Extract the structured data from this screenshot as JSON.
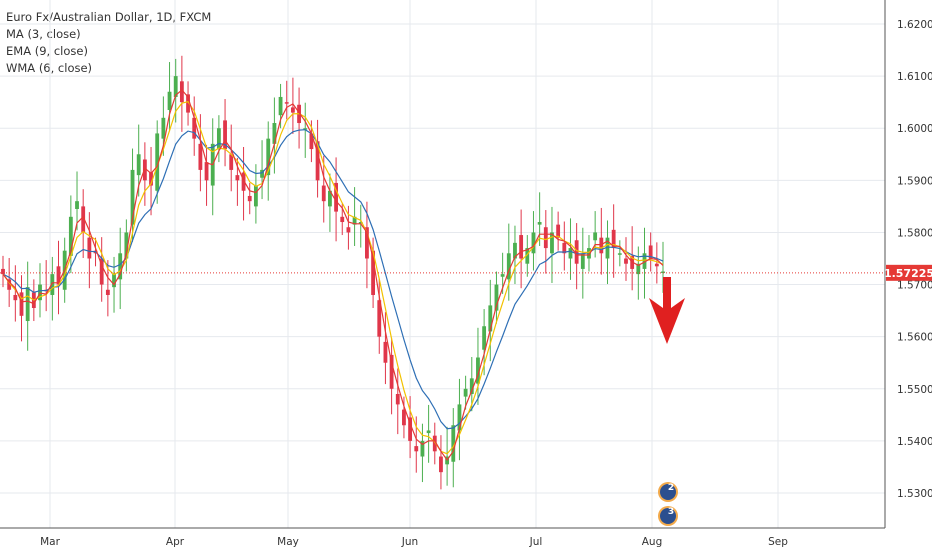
{
  "legend": {
    "title": "Euro Fx/Australian Dollar, 1D, FXCM",
    "indicators": [
      "MA (3, close)",
      "EMA (9, close)",
      "WMA (6, close)"
    ]
  },
  "colors": {
    "up": "#4caf50",
    "down": "#e0364a",
    "ma": "#e53935",
    "ema": "#2e6fb5",
    "wma": "#f2c200",
    "grid": "#e6e9ee",
    "axis": "#333333",
    "price_line": "#e53935"
  },
  "event_badges": [
    "2",
    "3"
  ],
  "chart_data": {
    "type": "candlestick",
    "symbol": "EURAUD",
    "timeframe": "1D",
    "y_ticks": [
      "1.53000",
      "1.54000",
      "1.55000",
      "1.56000",
      "1.57000",
      "1.58000",
      "1.59000",
      "1.60000",
      "1.61000",
      "1.62000"
    ],
    "ylim": [
      1.522,
      1.625
    ],
    "x_ticks": [
      "Mar",
      "Apr",
      "May",
      "Jun",
      "Jul",
      "Aug",
      "Sep"
    ],
    "last_price": "1.57225",
    "annotation": "bearish red arrow after last candle",
    "closes": [
      1.572,
      1.569,
      1.567,
      1.564,
      1.5695,
      1.5655,
      1.57,
      1.569,
      1.572,
      1.57,
      1.5765,
      1.583,
      1.586,
      1.58,
      1.575,
      1.576,
      1.57,
      1.568,
      1.572,
      1.576,
      1.58,
      1.592,
      1.595,
      1.59,
      1.589,
      1.599,
      1.602,
      1.607,
      1.61,
      1.605,
      1.603,
      1.598,
      1.592,
      1.59,
      1.597,
      1.6,
      1.596,
      1.592,
      1.59,
      1.588,
      1.586,
      1.589,
      1.592,
      1.598,
      1.601,
      1.606,
      1.605,
      1.603,
      1.601,
      1.6,
      1.596,
      1.59,
      1.586,
      1.588,
      1.584,
      1.582,
      1.58,
      1.583,
      1.582,
      1.575,
      1.568,
      1.56,
      1.555,
      1.55,
      1.547,
      1.543,
      1.54,
      1.538,
      1.54,
      1.542,
      1.538,
      1.534,
      1.537,
      1.543,
      1.547,
      1.55,
      1.552,
      1.556,
      1.562,
      1.566,
      1.57,
      1.572,
      1.576,
      1.578,
      1.575,
      1.577,
      1.58,
      1.582,
      1.577,
      1.58,
      1.579,
      1.576,
      1.577,
      1.574,
      1.576,
      1.577,
      1.58,
      1.576,
      1.579,
      1.577,
      1.576,
      1.574,
      1.573,
      1.574,
      1.576,
      1.575,
      1.5735,
      1.5725
    ]
  }
}
